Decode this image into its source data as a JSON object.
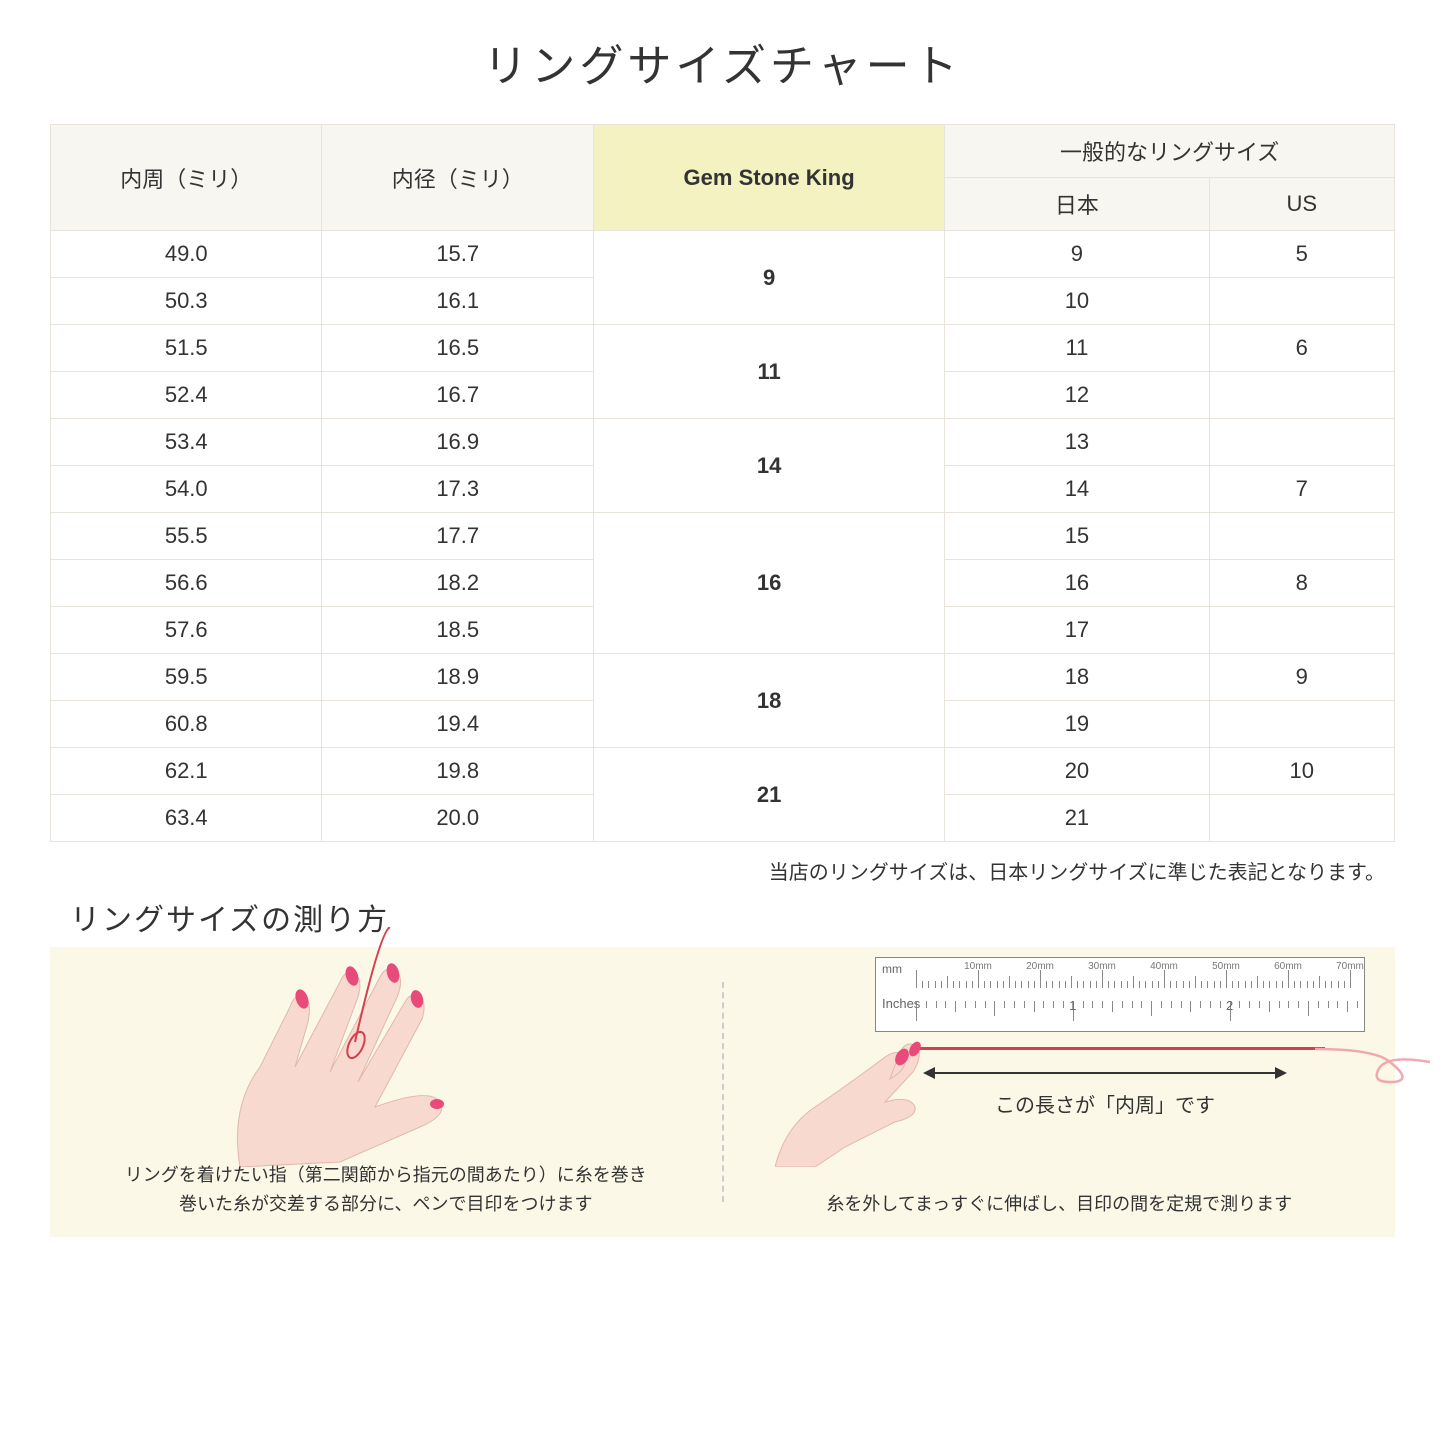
{
  "title": "リングサイズチャート",
  "table": {
    "header_col1": "内周（ミリ）",
    "header_col2": "内径（ミリ）",
    "header_col3": "Gem Stone King",
    "header_group": "一般的なリングサイズ",
    "header_sub1": "日本",
    "header_sub2": "US",
    "header_bg": "#f7f6f0",
    "highlight_bg": "#f3f2c0",
    "border_color": "#e8e4dc",
    "rows": [
      {
        "c": "49.0",
        "d": "15.7",
        "g": "9",
        "j": "9",
        "u": "5",
        "gspan": 2
      },
      {
        "c": "50.3",
        "d": "16.1",
        "g": "",
        "j": "10",
        "u": ""
      },
      {
        "c": "51.5",
        "d": "16.5",
        "g": "11",
        "j": "11",
        "u": "6",
        "gspan": 2
      },
      {
        "c": "52.4",
        "d": "16.7",
        "g": "",
        "j": "12",
        "u": ""
      },
      {
        "c": "53.4",
        "d": "16.9",
        "g": "14",
        "j": "13",
        "u": "",
        "gspan": 2
      },
      {
        "c": "54.0",
        "d": "17.3",
        "g": "",
        "j": "14",
        "u": "7"
      },
      {
        "c": "55.5",
        "d": "17.7",
        "g": "16",
        "j": "15",
        "u": "",
        "gspan": 3
      },
      {
        "c": "56.6",
        "d": "18.2",
        "g": "",
        "j": "16",
        "u": "8"
      },
      {
        "c": "57.6",
        "d": "18.5",
        "g": "",
        "j": "17",
        "u": ""
      },
      {
        "c": "59.5",
        "d": "18.9",
        "g": "18",
        "j": "18",
        "u": "9",
        "gspan": 2
      },
      {
        "c": "60.8",
        "d": "19.4",
        "g": "",
        "j": "19",
        "u": ""
      },
      {
        "c": "62.1",
        "d": "19.8",
        "g": "21",
        "j": "20",
        "u": "10",
        "gspan": 2
      },
      {
        "c": "63.4",
        "d": "20.0",
        "g": "",
        "j": "21",
        "u": ""
      }
    ]
  },
  "note": "当店のリングサイズは、日本リングサイズに準じた表記となります。",
  "measure_title": "リングサイズの測り方",
  "instructions": {
    "bg": "#fbf8e8",
    "left_text": "リングを着けたい指（第二関節から指元の間あたり）に糸を巻き\n巻いた糸が交差する部分に、ペンで目印をつけます",
    "right_text": "糸を外してまっすぐに伸ばし、目印の間を定規で測ります",
    "arrow_label": "この長さが「内周」です",
    "ruler": {
      "mm_label": "mm",
      "in_label": "Inches",
      "mm_marks": [
        "10mm",
        "20mm",
        "30mm",
        "40mm",
        "50mm",
        "60mm",
        "70mm"
      ],
      "in_marks": [
        "1",
        "2"
      ]
    },
    "hand_skin": "#f8d9cf",
    "nail_color": "#e84b7a",
    "thread_color": "#d43f4e"
  }
}
